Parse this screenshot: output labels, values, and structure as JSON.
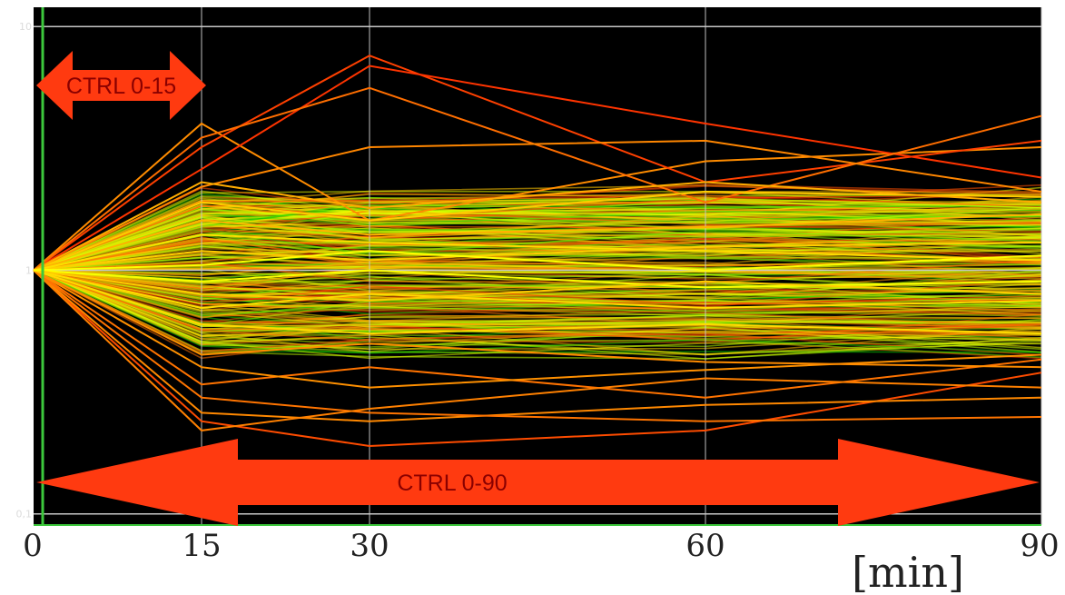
{
  "chart_data": {
    "type": "line",
    "title": "",
    "xlabel": "[min]",
    "ylabel": "",
    "x": [
      0,
      15,
      30,
      60,
      90
    ],
    "x_tick_labels": [
      "0",
      "15",
      "30",
      "60",
      "90"
    ],
    "y_scale": "log",
    "ylim": [
      0.09,
      12
    ],
    "y_tick_labels": [
      "0,1",
      "1",
      "10"
    ],
    "y_ticks": [
      0.1,
      1,
      10
    ],
    "grid": true,
    "background": "#000000",
    "series_color_scale": [
      "#00c800",
      "#c8ff00",
      "#ffff00",
      "#ff8c00",
      "#ff2800"
    ],
    "series": [
      {
        "values": [
          1,
          4.0,
          1.6,
          2.8,
          3.2
        ]
      },
      {
        "values": [
          1,
          3.2,
          7.6,
          2.3,
          3.4
        ]
      },
      {
        "values": [
          1,
          2.6,
          6.9,
          4.0,
          2.4
        ]
      },
      {
        "values": [
          1,
          3.5,
          5.6,
          1.9,
          4.3
        ]
      },
      {
        "values": [
          1,
          2.2,
          3.2,
          3.4,
          2.1
        ]
      },
      {
        "values": [
          1,
          0.24,
          0.19,
          0.22,
          0.38
        ]
      },
      {
        "values": [
          1,
          0.26,
          0.24,
          0.28,
          0.3
        ]
      },
      {
        "values": [
          1,
          0.3,
          0.26,
          0.24,
          0.25
        ]
      },
      {
        "values": [
          1,
          0.34,
          0.4,
          0.3,
          0.43
        ]
      },
      {
        "values": [
          1,
          0.22,
          0.27,
          0.36,
          0.33
        ]
      },
      {
        "values": [
          1,
          0.4,
          0.33,
          0.39,
          0.45
        ]
      },
      {
        "values": [
          1,
          0.45,
          0.5,
          0.42,
          0.4
        ]
      },
      {
        "values": [
          1,
          1.9,
          1.6,
          2.1,
          2.0
        ]
      },
      {
        "values": [
          1,
          2.3,
          1.8,
          2.3,
          1.9
        ]
      },
      {
        "values": [
          1,
          1.6,
          1.4,
          1.5,
          1.7
        ]
      },
      {
        "values": [
          1,
          0.6,
          0.55,
          0.6,
          0.55
        ]
      },
      {
        "values": [
          1,
          0.7,
          0.8,
          0.7,
          0.75
        ]
      },
      {
        "values": [
          1,
          1.2,
          1.1,
          1.25,
          1.3
        ]
      },
      {
        "values": [
          1,
          0.9,
          1.0,
          0.85,
          0.9
        ]
      },
      {
        "values": [
          1,
          1.4,
          1.3,
          1.2,
          1.1
        ]
      },
      {
        "values": [
          1,
          0.8,
          0.75,
          0.9,
          0.8
        ]
      },
      {
        "values": [
          1,
          1.05,
          1.2,
          1.0,
          1.15
        ]
      }
    ],
    "annotations": [
      {
        "label": "CTRL 0-15",
        "from_x": 0,
        "to_x": 15
      },
      {
        "label": "CTRL 0-90",
        "from_x": 0,
        "to_x": 90
      }
    ]
  },
  "colors": {
    "arrow_fill": "#ff3a10",
    "arrow_text": "#8a0000",
    "gridline": "#c8c8c8",
    "plot_bg": "#000000"
  }
}
